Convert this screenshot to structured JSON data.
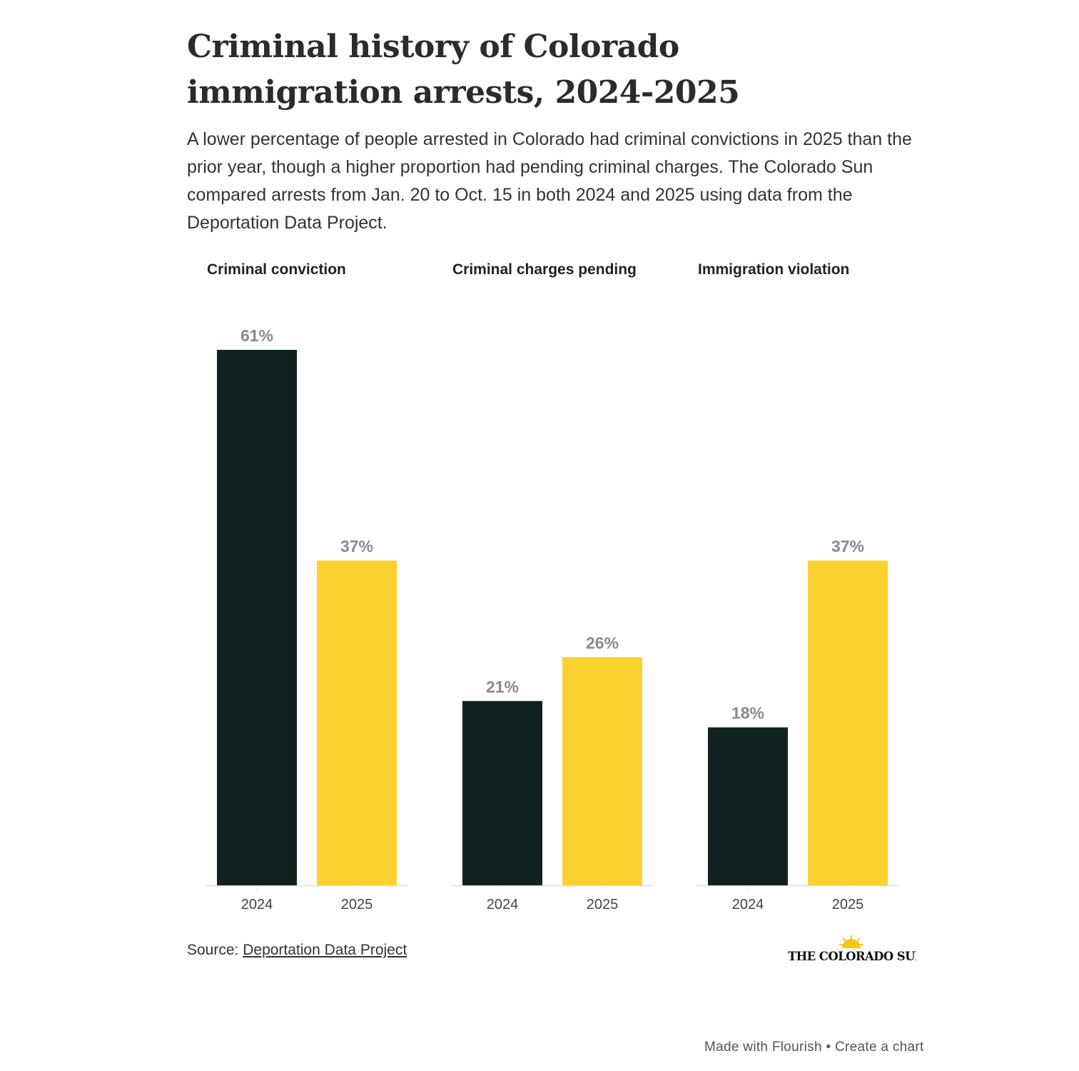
{
  "title": "Criminal history of Colorado immigration arrests, 2024-2025",
  "subtitle": "A lower percentage of people arrested in Colorado had criminal convictions in 2025 than the prior year, though a higher proportion had pending criminal charges. The Colorado Sun compared arrests from Jan. 20 to Oct. 15 in both 2024 and 2025 using data from the Deportation Data Project.",
  "chart_data": {
    "type": "bar",
    "layout": "small multiples",
    "categories": [
      "2024",
      "2025"
    ],
    "colors": {
      "2024": "#0f2220",
      "2025": "#fbd232"
    },
    "value_suffix": "%",
    "ylim": [
      0,
      61
    ],
    "grid": false,
    "panels": [
      {
        "title": "Criminal conviction",
        "values": [
          61,
          37
        ]
      },
      {
        "title": "Criminal charges pending",
        "values": [
          21,
          26
        ]
      },
      {
        "title": "Immigration violation",
        "values": [
          18,
          37
        ]
      }
    ]
  },
  "source": {
    "label": "Source:",
    "link_text": "Deportation Data Project"
  },
  "logo": {
    "text": "THE COLORADO SUN"
  },
  "footer": {
    "made_with": "Made with Flourish",
    "separator": "•",
    "create": "Create a chart"
  }
}
